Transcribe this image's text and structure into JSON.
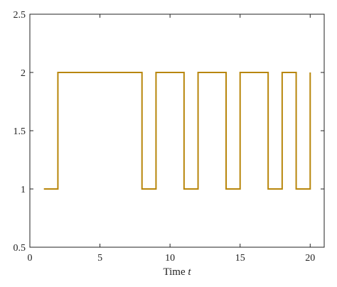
{
  "chart_data": {
    "type": "line",
    "step": "post",
    "title": "",
    "xlabel_text": "Time ",
    "xlabel_var": "t",
    "ylabel": "",
    "xlim": [
      0,
      21
    ],
    "ylim": [
      0.5,
      2.5
    ],
    "xticks": [
      0,
      5,
      10,
      15,
      20
    ],
    "yticks": [
      0.5,
      1,
      1.5,
      2,
      2.5
    ],
    "ytick_labels": [
      "0.5",
      "1",
      "1.5",
      "2",
      "2.5"
    ],
    "grid": false,
    "series": [
      {
        "color": "#b8860b",
        "x": [
          1,
          2,
          8,
          9,
          11,
          12,
          14,
          15,
          17,
          18,
          19,
          20,
          20
        ],
        "y": [
          1,
          2,
          1,
          2,
          1,
          2,
          1,
          2,
          1,
          2,
          1,
          2,
          2
        ]
      }
    ]
  }
}
